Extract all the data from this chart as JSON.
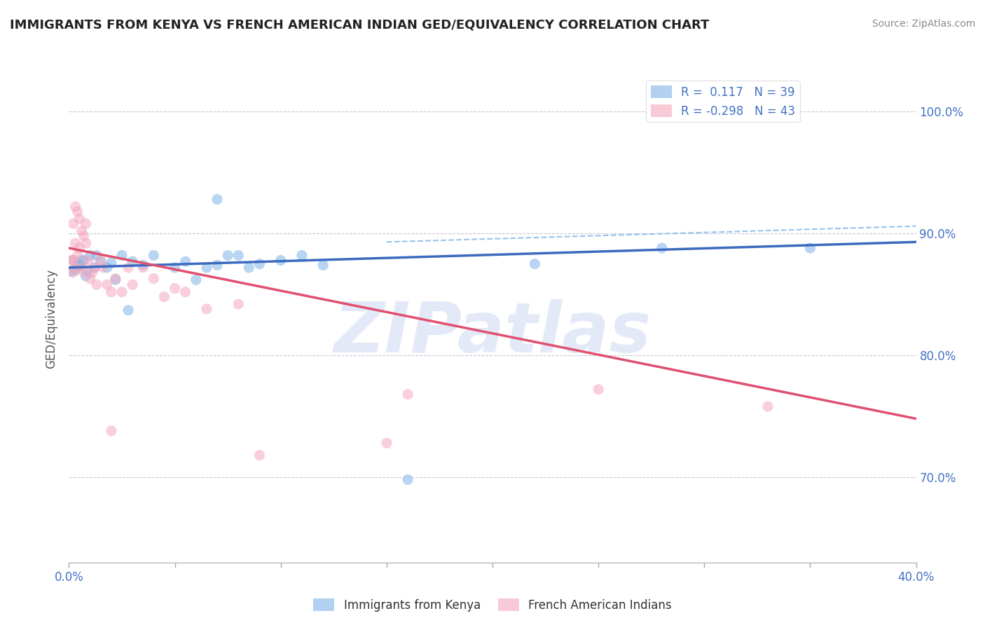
{
  "title": "IMMIGRANTS FROM KENYA VS FRENCH AMERICAN INDIAN GED/EQUIVALENCY CORRELATION CHART",
  "source": "Source: ZipAtlas.com",
  "ylabel": "GED/Equivalency",
  "ytick_labels": [
    "70.0%",
    "80.0%",
    "90.0%",
    "100.0%"
  ],
  "yticks": [
    0.7,
    0.8,
    0.9,
    1.0
  ],
  "xticks": [
    0.0,
    0.05,
    0.1,
    0.15,
    0.2,
    0.25,
    0.3,
    0.35,
    0.4
  ],
  "xtick_labels_show": [
    "0.0%",
    "",
    "",
    "",
    "",
    "",
    "",
    "",
    "40.0%"
  ],
  "xlim": [
    0.0,
    0.4
  ],
  "ylim": [
    0.63,
    1.03
  ],
  "legend_entries": [
    {
      "label": "R =  0.117   N = 39"
    },
    {
      "label": "R = -0.298   N = 43"
    }
  ],
  "legend_labels_bottom": [
    "Immigrants from Kenya",
    "French American Indians"
  ],
  "blue_scatter": [
    [
      0.005,
      0.873
    ],
    [
      0.007,
      0.878
    ],
    [
      0.008,
      0.865
    ],
    [
      0.01,
      0.882
    ],
    [
      0.012,
      0.872
    ],
    [
      0.013,
      0.882
    ],
    [
      0.015,
      0.877
    ],
    [
      0.018,
      0.872
    ],
    [
      0.02,
      0.876
    ],
    [
      0.022,
      0.862
    ],
    [
      0.025,
      0.882
    ],
    [
      0.03,
      0.877
    ],
    [
      0.035,
      0.874
    ],
    [
      0.04,
      0.882
    ],
    [
      0.05,
      0.872
    ],
    [
      0.055,
      0.877
    ],
    [
      0.06,
      0.862
    ],
    [
      0.065,
      0.872
    ],
    [
      0.07,
      0.874
    ],
    [
      0.075,
      0.882
    ],
    [
      0.08,
      0.882
    ],
    [
      0.085,
      0.872
    ],
    [
      0.09,
      0.875
    ],
    [
      0.1,
      0.878
    ],
    [
      0.11,
      0.882
    ],
    [
      0.12,
      0.874
    ],
    [
      0.07,
      0.928
    ],
    [
      0.22,
      0.875
    ],
    [
      0.028,
      0.837
    ],
    [
      0.28,
      0.888
    ],
    [
      0.35,
      0.888
    ],
    [
      0.16,
      0.698
    ],
    [
      0.005,
      0.874
    ],
    [
      0.003,
      0.87
    ],
    [
      0.002,
      0.878
    ],
    [
      0.001,
      0.869
    ],
    [
      0.004,
      0.874
    ],
    [
      0.006,
      0.878
    ],
    [
      0.009,
      0.869
    ]
  ],
  "pink_scatter": [
    [
      0.002,
      0.878
    ],
    [
      0.003,
      0.892
    ],
    [
      0.004,
      0.882
    ],
    [
      0.005,
      0.888
    ],
    [
      0.006,
      0.872
    ],
    [
      0.007,
      0.868
    ],
    [
      0.008,
      0.892
    ],
    [
      0.009,
      0.878
    ],
    [
      0.01,
      0.863
    ],
    [
      0.011,
      0.868
    ],
    [
      0.012,
      0.872
    ],
    [
      0.013,
      0.858
    ],
    [
      0.015,
      0.878
    ],
    [
      0.016,
      0.872
    ],
    [
      0.018,
      0.858
    ],
    [
      0.02,
      0.852
    ],
    [
      0.022,
      0.863
    ],
    [
      0.025,
      0.852
    ],
    [
      0.028,
      0.872
    ],
    [
      0.03,
      0.858
    ],
    [
      0.035,
      0.872
    ],
    [
      0.04,
      0.863
    ],
    [
      0.045,
      0.848
    ],
    [
      0.05,
      0.855
    ],
    [
      0.055,
      0.852
    ],
    [
      0.065,
      0.838
    ],
    [
      0.08,
      0.842
    ],
    [
      0.003,
      0.922
    ],
    [
      0.002,
      0.908
    ],
    [
      0.004,
      0.918
    ],
    [
      0.005,
      0.912
    ],
    [
      0.006,
      0.902
    ],
    [
      0.007,
      0.898
    ],
    [
      0.008,
      0.908
    ],
    [
      0.16,
      0.768
    ],
    [
      0.25,
      0.772
    ],
    [
      0.33,
      0.758
    ],
    [
      0.02,
      0.738
    ],
    [
      0.15,
      0.728
    ],
    [
      0.09,
      0.718
    ],
    [
      0.001,
      0.878
    ],
    [
      0.002,
      0.868
    ],
    [
      0.003,
      0.872
    ]
  ],
  "blue_line": {
    "x": [
      0.0,
      0.4
    ],
    "y": [
      0.872,
      0.893
    ]
  },
  "pink_line": {
    "x": [
      0.0,
      0.4
    ],
    "y": [
      0.888,
      0.748
    ]
  },
  "blue_dashed_line": {
    "x": [
      0.15,
      0.4
    ],
    "y": [
      0.893,
      0.906
    ]
  },
  "grid_color": "#c8c8d8",
  "blue_color": "#7fb3e8",
  "pink_color": "#f4a8be",
  "blue_line_color": "#3b6abf",
  "pink_line_color": "#e05070",
  "watermark_text": "ZIPatlas",
  "watermark_color": "#c8d4f0",
  "title_color": "#222222",
  "axis_label_color": "#4472c4",
  "source_color": "#888888",
  "background_color": "#ffffff"
}
